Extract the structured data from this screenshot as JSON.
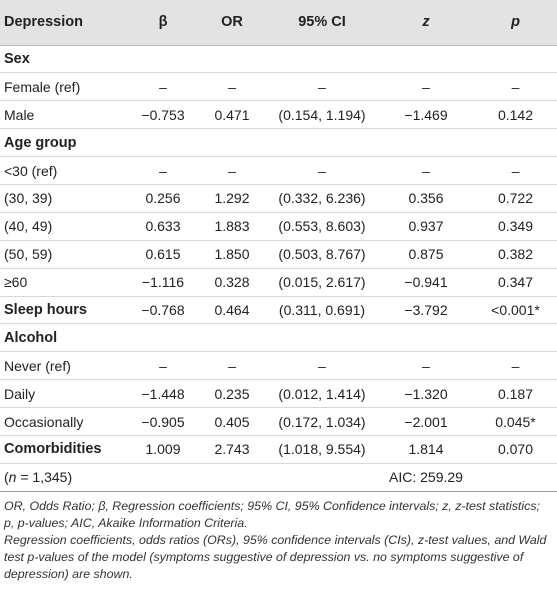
{
  "headers": [
    "Depression",
    "β",
    "OR",
    "95% CI",
    "z",
    "p"
  ],
  "rows": [
    {
      "kind": "section",
      "cells": [
        "Sex",
        "",
        "",
        "",
        "",
        ""
      ]
    },
    {
      "kind": "data",
      "cells": [
        "Female (ref)",
        "–",
        "–",
        "–",
        "–",
        "–"
      ]
    },
    {
      "kind": "data",
      "cells": [
        "Male",
        "−0.753",
        "0.471",
        "(0.154, 1.194)",
        "−1.469",
        "0.142"
      ]
    },
    {
      "kind": "section",
      "cells": [
        "Age group",
        "",
        "",
        "",
        "",
        ""
      ]
    },
    {
      "kind": "data",
      "cells": [
        "<30 (ref)",
        "–",
        "–",
        "–",
        "–",
        "–"
      ]
    },
    {
      "kind": "data",
      "cells": [
        "(30, 39)",
        "0.256",
        "1.292",
        "(0.332, 6.236)",
        "0.356",
        "0.722"
      ]
    },
    {
      "kind": "data",
      "cells": [
        "(40, 49)",
        "0.633",
        "1.883",
        "(0.553, 8.603)",
        "0.937",
        "0.349"
      ]
    },
    {
      "kind": "data",
      "cells": [
        "(50, 59)",
        "0.615",
        "1.850",
        "(0.503, 8.767)",
        "0.875",
        "0.382"
      ]
    },
    {
      "kind": "data",
      "cells": [
        "≥60",
        "−1.116",
        "0.328",
        "(0.015, 2.617)",
        "−0.941",
        "0.347"
      ]
    },
    {
      "kind": "boldfirst",
      "cells": [
        "Sleep hours",
        "−0.768",
        "0.464",
        "(0.311, 0.691)",
        "−3.792",
        "<0.001*"
      ]
    },
    {
      "kind": "section",
      "cells": [
        "Alcohol",
        "",
        "",
        "",
        "",
        ""
      ]
    },
    {
      "kind": "data",
      "cells": [
        "Never (ref)",
        "–",
        "–",
        "–",
        "–",
        "–"
      ]
    },
    {
      "kind": "data",
      "cells": [
        "Daily",
        "−1.448",
        "0.235",
        "(0.012, 1.414)",
        "−1.320",
        "0.187"
      ]
    },
    {
      "kind": "data",
      "cells": [
        "Occasionally",
        "−0.905",
        "0.405",
        "(0.172, 1.034)",
        "−2.001",
        "0.045*"
      ]
    },
    {
      "kind": "boldfirst",
      "cells": [
        "Comorbidities",
        "1.009",
        "2.743",
        "(1.018, 9.554)",
        "1.814",
        "0.070"
      ]
    }
  ],
  "n_row": {
    "n_letter": "n",
    "n_rest": " = 1,345)",
    "aic": "AIC: 259.29"
  },
  "footnotes": [
    "OR, Odds Ratio; β, Regression coefficients; 95% CI, 95% Confidence intervals; z, z-test statistics; p, p-values; AIC, Akaike Information Criteria.",
    "Regression coefficients, odds ratios (ORs), 95% confidence intervals (CIs), z-test values, and Wald test p-values of the model (symptoms suggestive of depression vs. no symptoms suggestive of depression) are shown."
  ]
}
